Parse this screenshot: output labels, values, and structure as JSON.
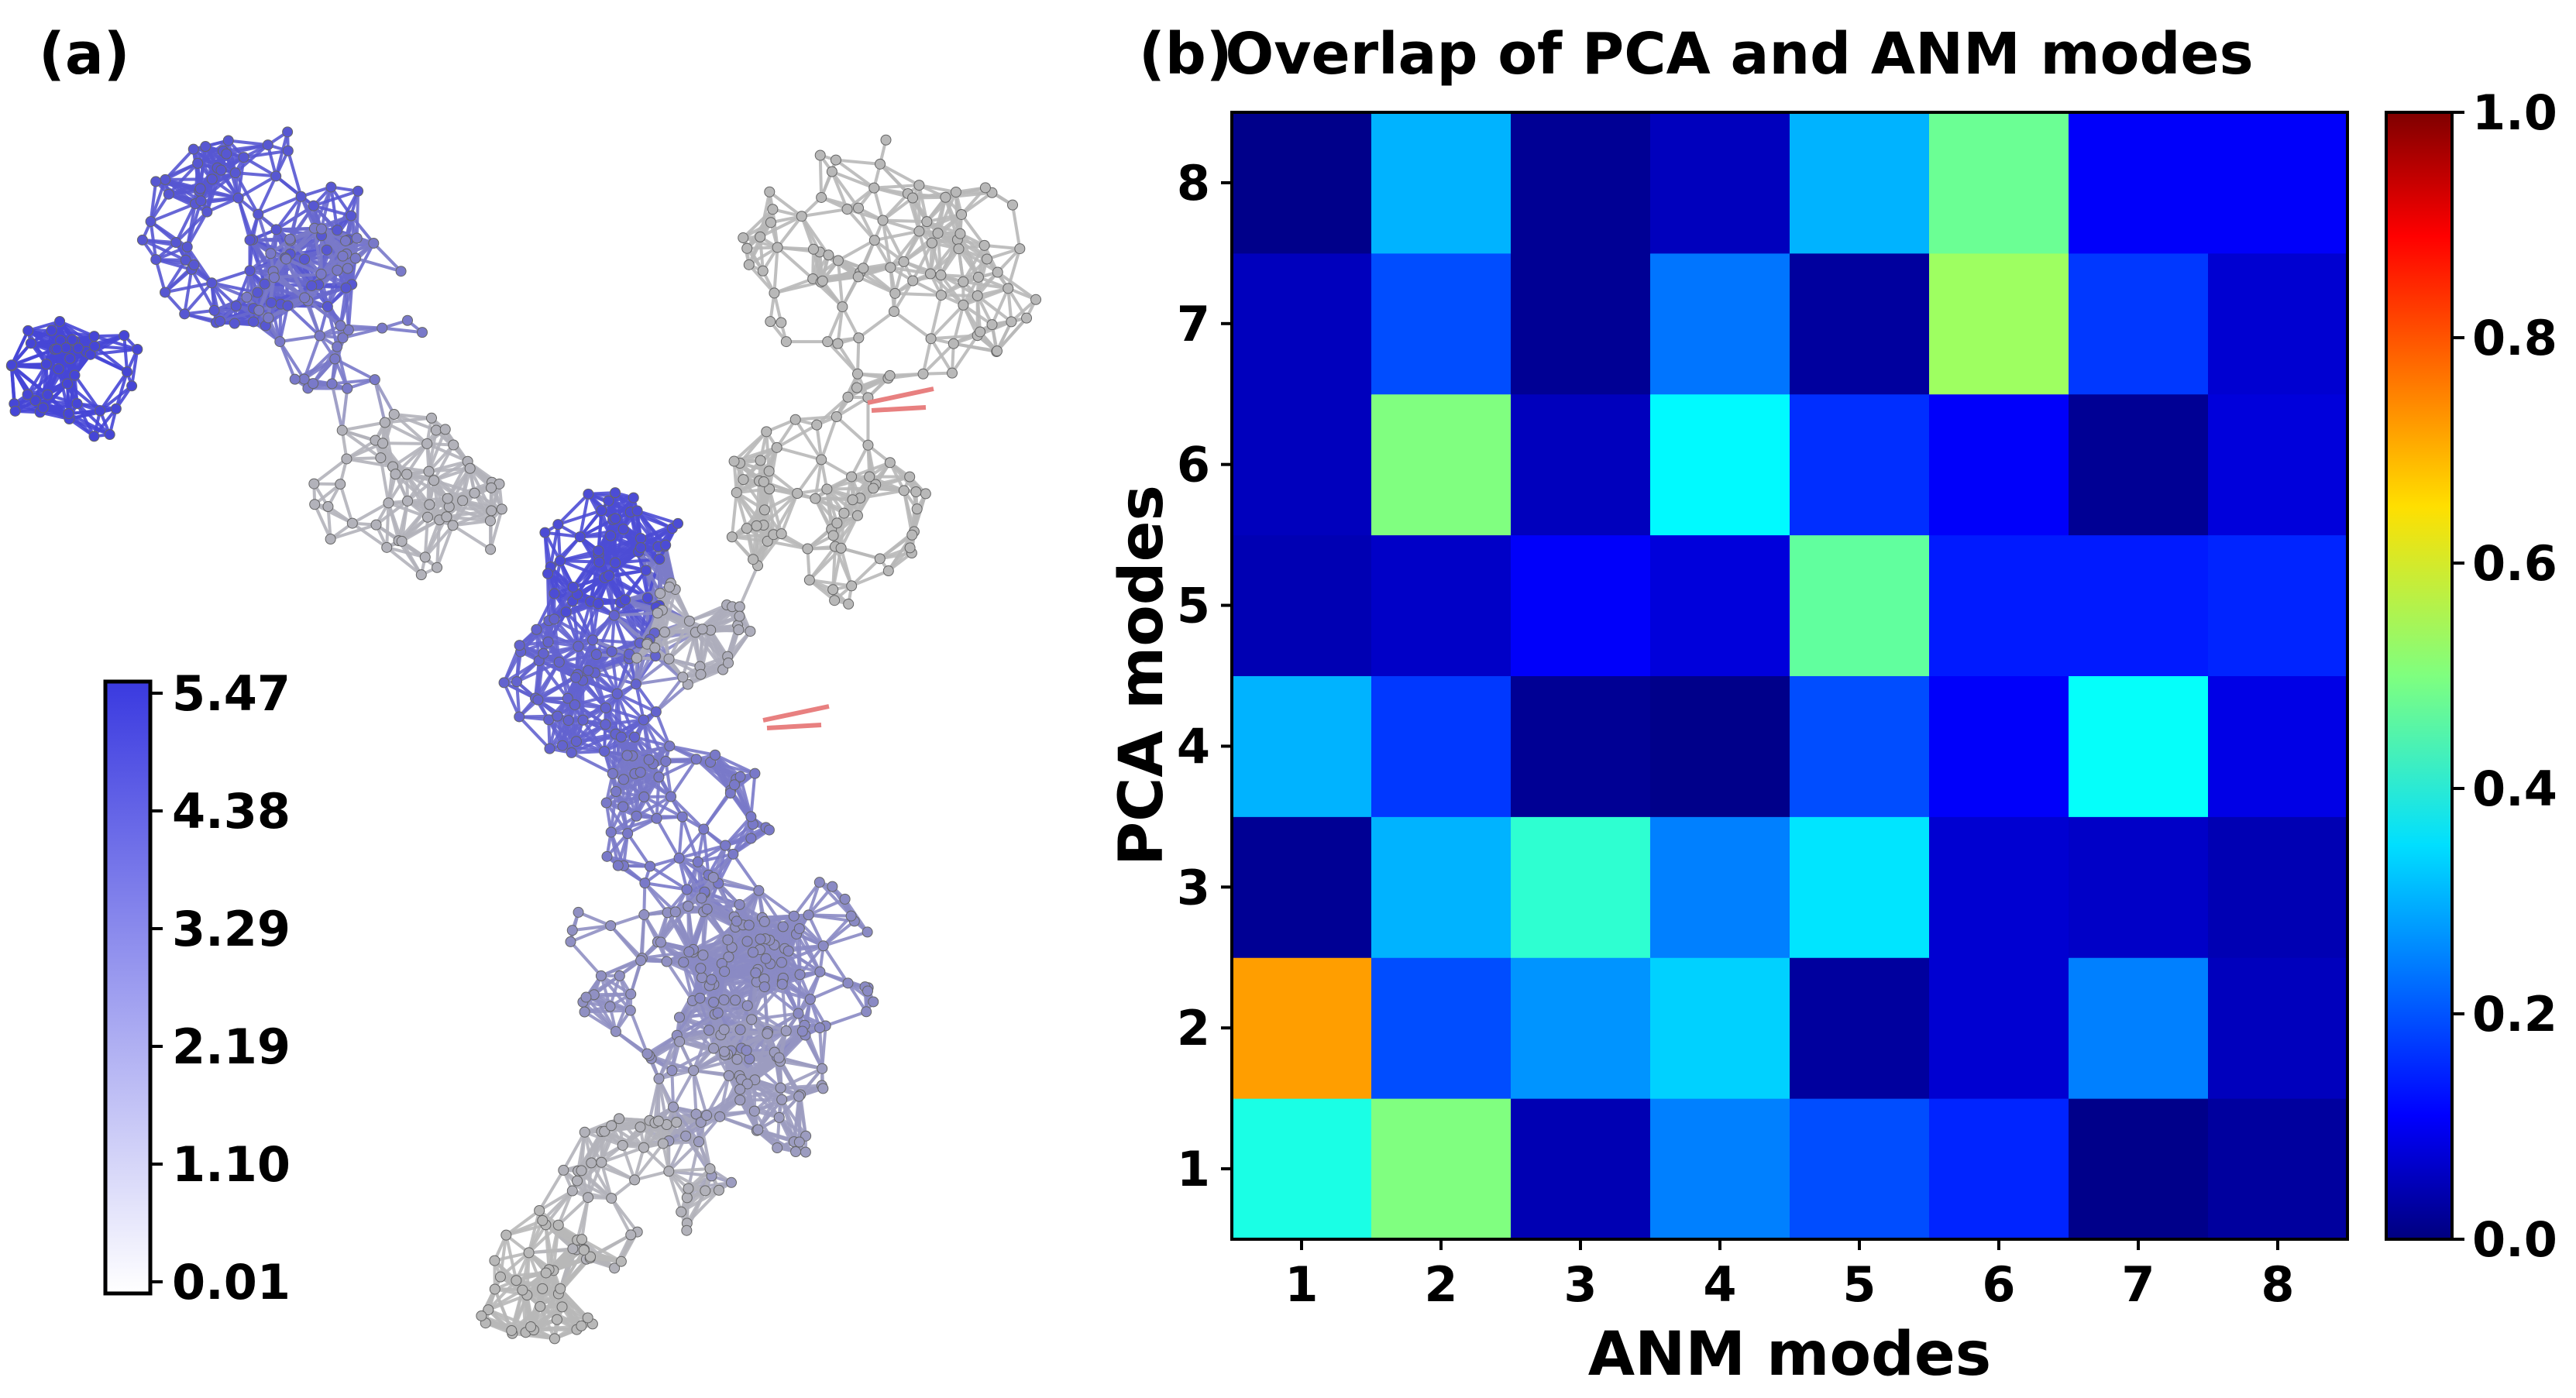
{
  "panel_a": {
    "label": "(a)",
    "colorbar": {
      "tick_labels": [
        "5.47",
        "4.38",
        "3.29",
        "2.19",
        "1.10",
        "0.01"
      ],
      "colors": [
        "#3a3ae0",
        "#ffffff"
      ]
    },
    "structure": {
      "base_color": "#b8b8b8",
      "highlight_color": "#4646d6",
      "marker_color": "#e88080"
    }
  },
  "panel_b": {
    "label": "(b)"
  },
  "chart_data": {
    "type": "heatmap",
    "title": "Overlap of PCA and ANM modes",
    "xlabel": "ANM modes",
    "ylabel": "PCA modes",
    "x_categories": [
      "1",
      "2",
      "3",
      "4",
      "5",
      "6",
      "7",
      "8"
    ],
    "y_categories": [
      "1",
      "2",
      "3",
      "4",
      "5",
      "6",
      "7",
      "8"
    ],
    "values": [
      [
        0.4,
        0.5,
        0.05,
        0.25,
        0.2,
        0.16,
        0.01,
        0.03
      ],
      [
        0.72,
        0.2,
        0.27,
        0.33,
        0.03,
        0.08,
        0.25,
        0.06
      ],
      [
        0.02,
        0.3,
        0.42,
        0.25,
        0.35,
        0.08,
        0.07,
        0.05
      ],
      [
        0.3,
        0.18,
        0.02,
        0.01,
        0.2,
        0.12,
        0.38,
        0.1
      ],
      [
        0.05,
        0.07,
        0.12,
        0.09,
        0.47,
        0.15,
        0.15,
        0.16
      ],
      [
        0.06,
        0.5,
        0.06,
        0.37,
        0.17,
        0.12,
        0.02,
        0.09
      ],
      [
        0.06,
        0.2,
        0.02,
        0.24,
        0.03,
        0.53,
        0.18,
        0.08
      ],
      [
        0.01,
        0.3,
        0.02,
        0.06,
        0.3,
        0.48,
        0.12,
        0.12
      ]
    ],
    "colorbar": {
      "ticks": [
        0.0,
        0.2,
        0.4,
        0.6,
        0.8,
        1.0
      ],
      "tick_labels": [
        "0.0",
        "0.2",
        "0.4",
        "0.6",
        "0.8",
        "1.0"
      ],
      "colormap": "jet",
      "range": [
        0,
        1
      ]
    }
  }
}
